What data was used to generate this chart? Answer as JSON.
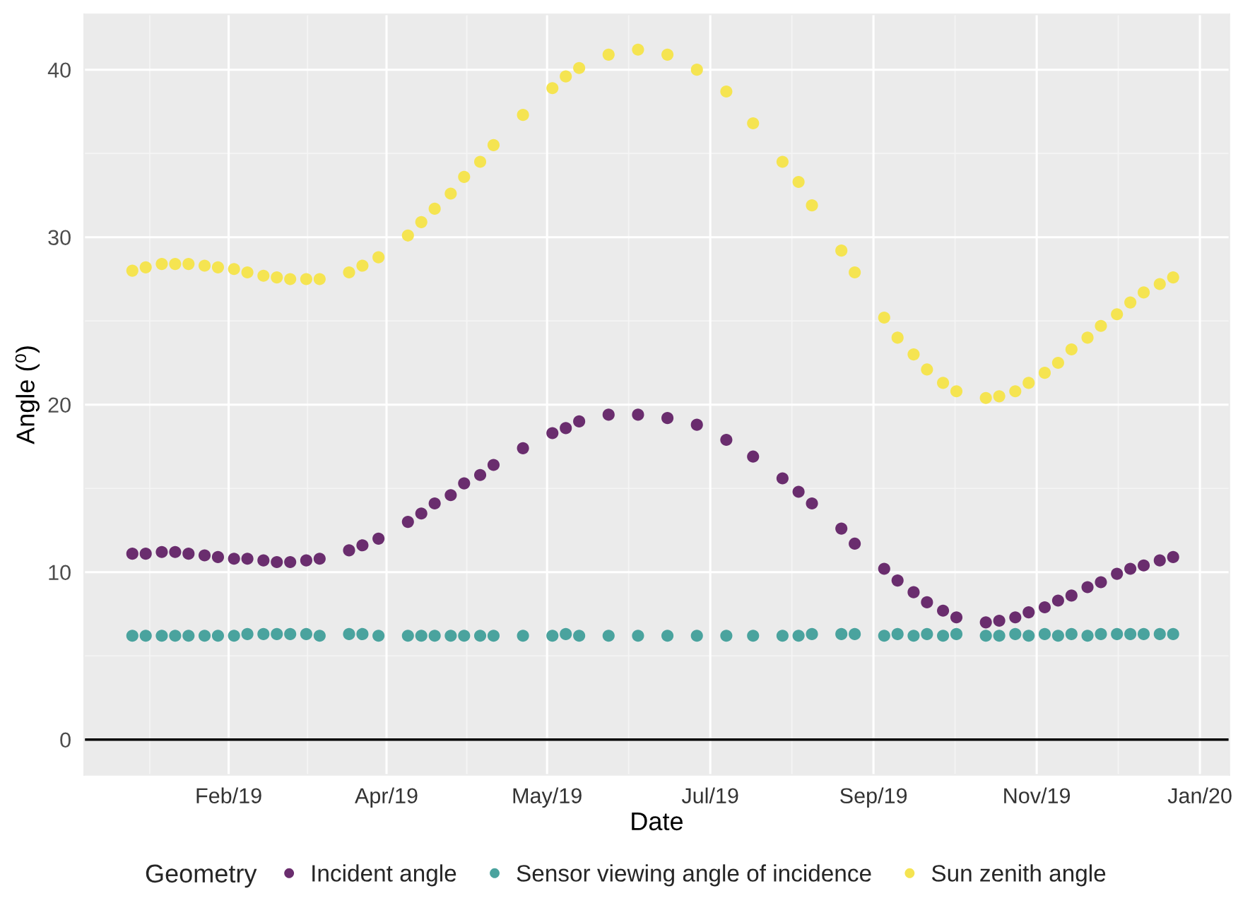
{
  "chart_data": {
    "type": "scatter",
    "xlabel": "Date",
    "ylabel": "Angle (⁰)",
    "legend_title": "Geometry",
    "x": [
      "2018-12-27",
      "2019-01-01",
      "2019-01-07",
      "2019-01-12",
      "2019-01-17",
      "2019-01-23",
      "2019-01-28",
      "2019-02-03",
      "2019-02-08",
      "2019-02-14",
      "2019-02-19",
      "2019-02-24",
      "2019-03-02",
      "2019-03-07",
      "2019-03-18",
      "2019-03-23",
      "2019-03-29",
      "2019-04-09",
      "2019-04-14",
      "2019-04-19",
      "2019-04-25",
      "2019-04-30",
      "2019-05-06",
      "2019-05-11",
      "2019-05-22",
      "2019-06-02",
      "2019-06-07",
      "2019-06-12",
      "2019-06-23",
      "2019-07-04",
      "2019-07-15",
      "2019-07-26",
      "2019-08-06",
      "2019-08-16",
      "2019-08-27",
      "2019-09-02",
      "2019-09-07",
      "2019-09-18",
      "2019-09-23",
      "2019-10-04",
      "2019-10-09",
      "2019-10-15",
      "2019-10-20",
      "2019-10-26",
      "2019-10-31",
      "2019-11-11",
      "2019-11-16",
      "2019-11-22",
      "2019-11-27",
      "2019-12-03",
      "2019-12-08",
      "2019-12-13",
      "2019-12-19",
      "2019-12-24",
      "2019-12-30",
      "2020-01-04",
      "2020-01-09",
      "2020-01-15",
      "2020-01-20"
    ],
    "series": [
      {
        "name": "Incident angle",
        "color": "#6a2d6e",
        "values": [
          11.1,
          11.1,
          11.2,
          11.2,
          11.1,
          11.0,
          10.9,
          10.8,
          10.8,
          10.7,
          10.6,
          10.6,
          10.7,
          10.8,
          11.3,
          11.6,
          12.0,
          13.0,
          13.5,
          14.1,
          14.6,
          15.3,
          15.8,
          16.4,
          17.4,
          18.3,
          18.6,
          19.0,
          19.4,
          19.4,
          19.2,
          18.8,
          17.9,
          16.9,
          15.6,
          14.8,
          14.1,
          12.6,
          11.7,
          10.2,
          9.5,
          8.8,
          8.2,
          7.7,
          7.3,
          7.0,
          7.1,
          7.3,
          7.6,
          7.9,
          8.3,
          8.6,
          9.1,
          9.4,
          9.9,
          10.2,
          10.4,
          10.7,
          10.9
        ]
      },
      {
        "name": "Sensor viewing angle of incidence",
        "color": "#4aa39e",
        "values": [
          6.2,
          6.2,
          6.2,
          6.2,
          6.2,
          6.2,
          6.2,
          6.2,
          6.3,
          6.3,
          6.3,
          6.3,
          6.3,
          6.2,
          6.3,
          6.3,
          6.2,
          6.2,
          6.2,
          6.2,
          6.2,
          6.2,
          6.2,
          6.2,
          6.2,
          6.2,
          6.3,
          6.2,
          6.2,
          6.2,
          6.2,
          6.2,
          6.2,
          6.2,
          6.2,
          6.2,
          6.3,
          6.3,
          6.3,
          6.2,
          6.3,
          6.2,
          6.3,
          6.2,
          6.3,
          6.2,
          6.2,
          6.3,
          6.2,
          6.3,
          6.2,
          6.3,
          6.2,
          6.3,
          6.3,
          6.3,
          6.3,
          6.3,
          6.3
        ]
      },
      {
        "name": "Sun zenith angle",
        "color": "#f5e451",
        "values": [
          28.0,
          28.2,
          28.4,
          28.4,
          28.4,
          28.3,
          28.2,
          28.1,
          27.9,
          27.7,
          27.6,
          27.5,
          27.5,
          27.5,
          27.9,
          28.3,
          28.8,
          30.1,
          30.9,
          31.7,
          32.6,
          33.6,
          34.5,
          35.5,
          37.3,
          38.9,
          39.6,
          40.1,
          40.9,
          41.2,
          40.9,
          40.0,
          38.7,
          36.8,
          34.5,
          33.3,
          31.9,
          29.2,
          27.9,
          25.2,
          24.0,
          23.0,
          22.1,
          21.3,
          20.8,
          20.4,
          20.5,
          20.8,
          21.3,
          21.9,
          22.5,
          23.3,
          24.0,
          24.7,
          25.4,
          26.1,
          26.7,
          27.2,
          27.6
        ]
      }
    ],
    "xlim": [
      "2018-12-09",
      "2020-02-10"
    ],
    "xticks": [
      {
        "value": "2019-02-01",
        "label": "Feb/19"
      },
      {
        "value": "2019-04-01",
        "label": "Apr/19"
      },
      {
        "value": "2019-05-31",
        "label": "May/19"
      },
      {
        "value": "2019-07-31",
        "label": "Jul/19"
      },
      {
        "value": "2019-09-30",
        "label": "Sep/19"
      },
      {
        "value": "2019-11-30",
        "label": "Nov/19"
      },
      {
        "value": "2020-01-30",
        "label": "Jan/20"
      }
    ],
    "ylim": [
      -2.1,
      43.3
    ],
    "yticks": [
      0,
      10,
      20,
      30,
      40
    ],
    "ref_lines": [
      {
        "axis": "y",
        "value": 0,
        "color": "#000000"
      }
    ],
    "grid": true,
    "legend": "bottom",
    "marker": "circle"
  }
}
